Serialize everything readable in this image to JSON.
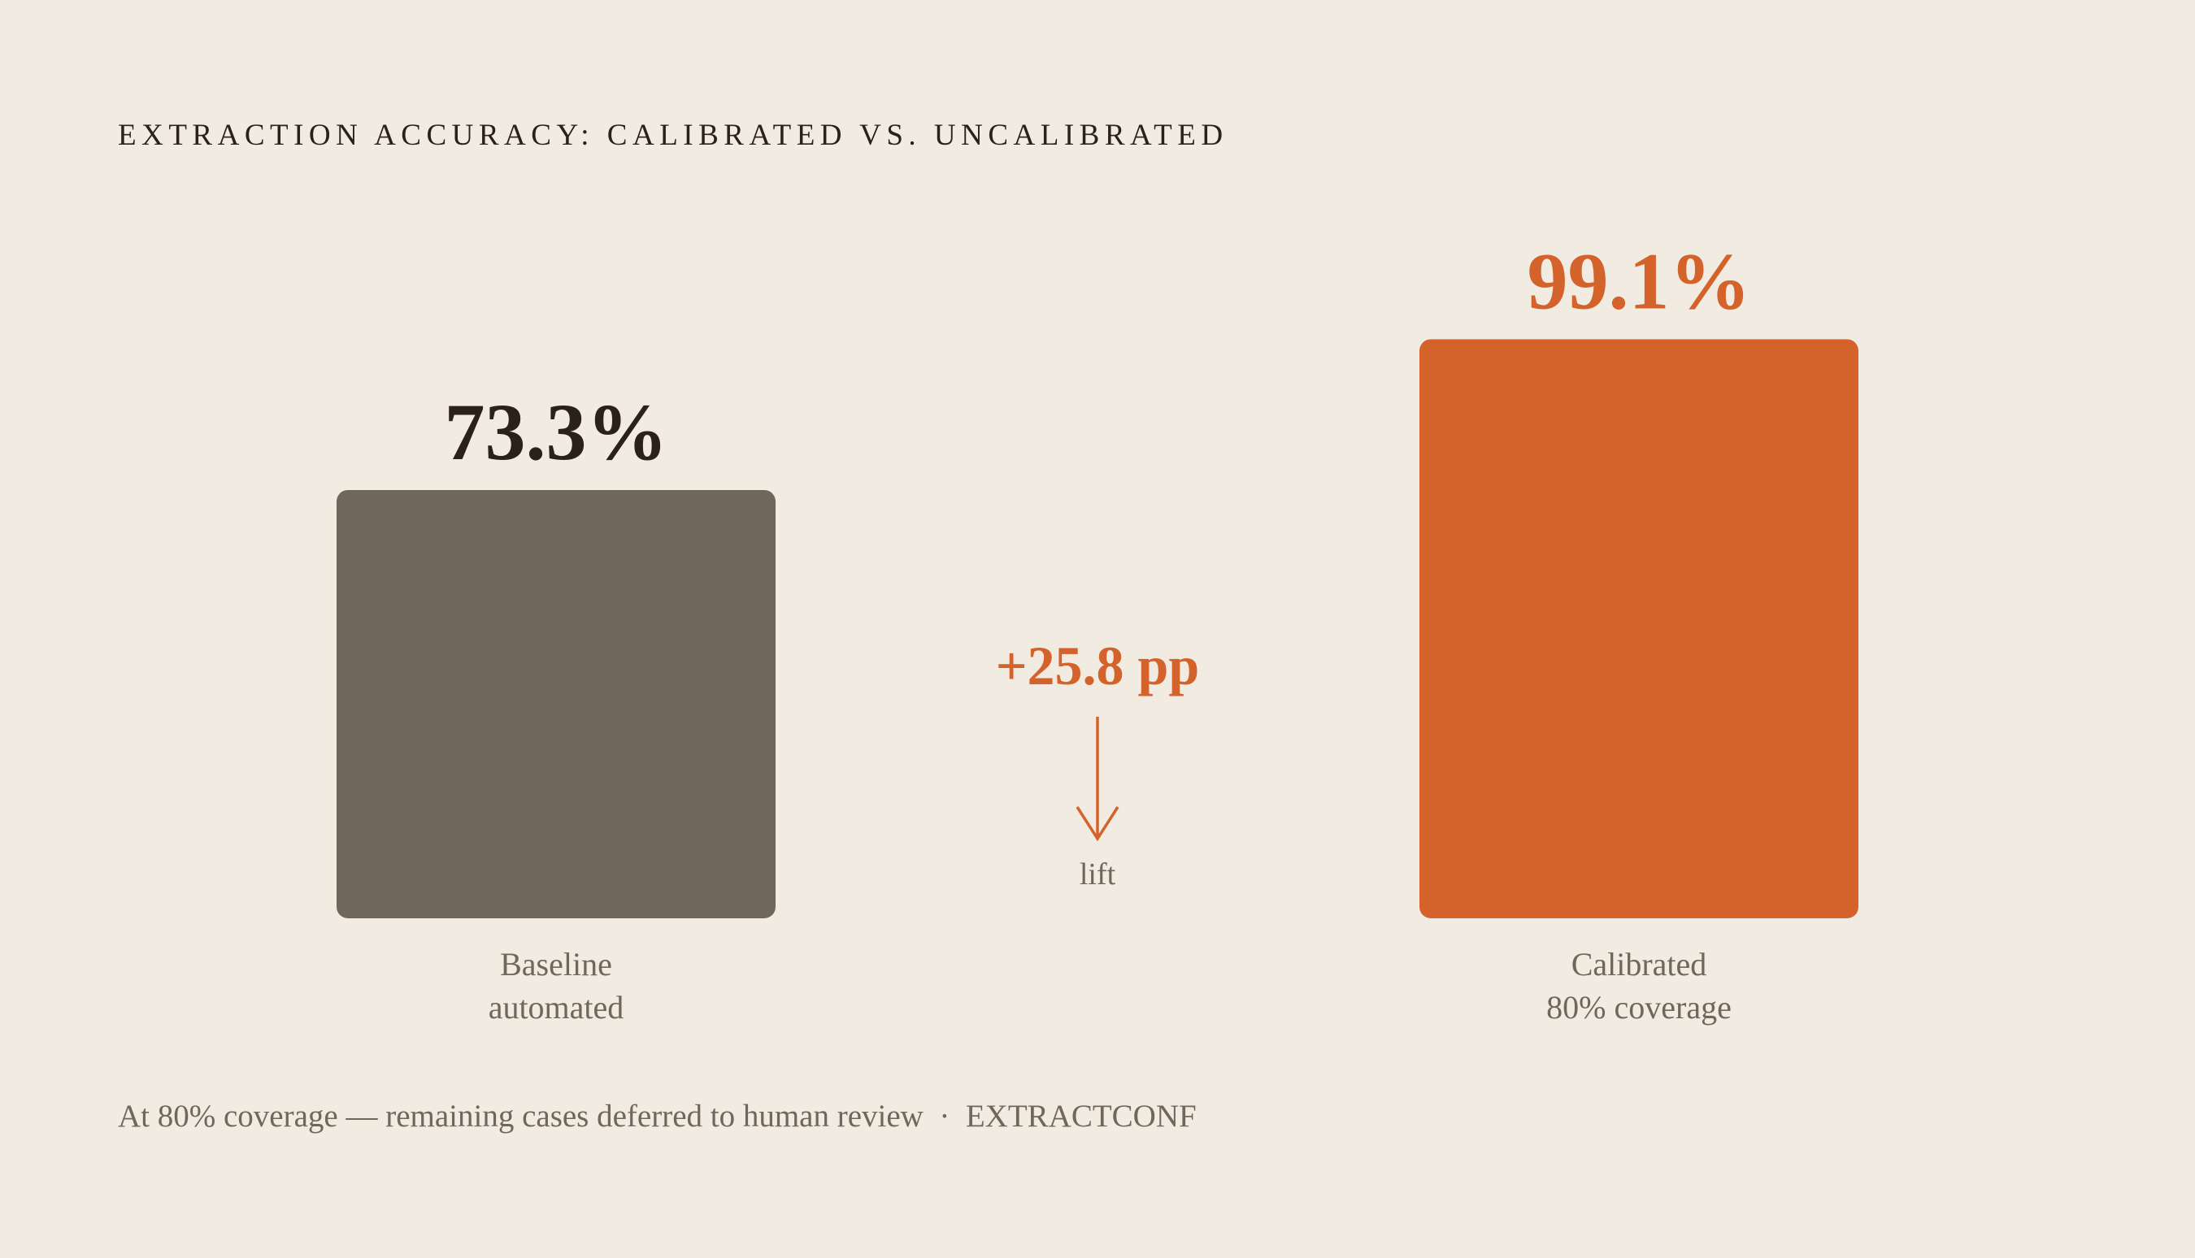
{
  "chart_data": {
    "type": "bar",
    "title": "EXTRACTION ACCURACY: CALIBRATED VS. UNCALIBRATED",
    "categories": [
      "Baseline",
      "Calibrated"
    ],
    "category_notes": [
      "automated",
      "80% coverage"
    ],
    "values": [
      73.3,
      99.1
    ],
    "value_labels": [
      "73.3%",
      "99.1%"
    ],
    "colors": [
      "#6f665c",
      "#d4622b"
    ],
    "label_colors": [
      "#2a211b",
      "#d4622b"
    ],
    "annotation": "+25.8 pp",
    "annotation_note": "lift",
    "footnote": "At 80% coverage — remaining cases deferred to human review  ·  EXTRACTCONF"
  }
}
